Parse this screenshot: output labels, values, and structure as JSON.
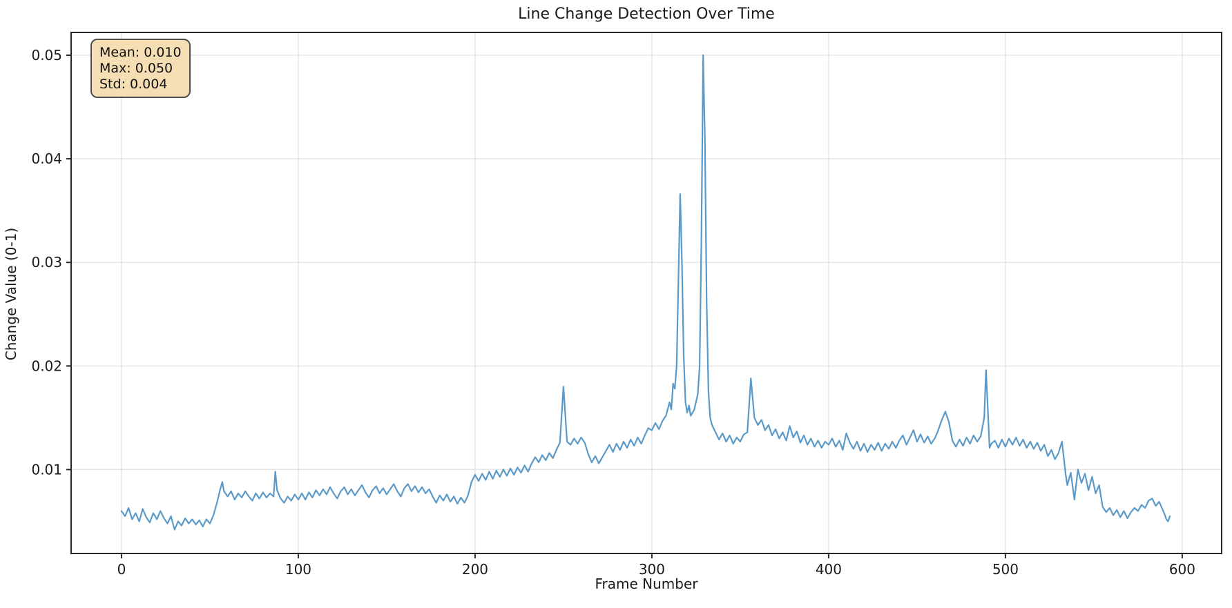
{
  "title": "Line Change Detection Over Time",
  "stats_box": {
    "mean_label": "Mean: 0.010",
    "max_label": "Max: 0.050",
    "std_label": "Std: 0.004",
    "background_color": "#f5deb3",
    "border_color": "#4d4d4d"
  },
  "chart_data": {
    "type": "line",
    "title": "Line Change Detection Over Time",
    "xlabel": "Frame Number",
    "ylabel": "Change Value (0-1)",
    "xlim": [
      -28.5,
      622.3
    ],
    "ylim": [
      0.0019,
      0.0522
    ],
    "x_ticks": [
      0,
      100,
      200,
      300,
      400,
      500,
      600
    ],
    "x_tick_labels": [
      "0",
      "100",
      "200",
      "300",
      "400",
      "500",
      "600"
    ],
    "y_ticks": [
      0.01,
      0.02,
      0.03,
      0.04,
      0.05
    ],
    "y_tick_labels": [
      "0.01",
      "0.02",
      "0.03",
      "0.04",
      "0.05"
    ],
    "grid": true,
    "grid_color": "#e5e5e5",
    "spine_color": "#262626",
    "line_color": "#5b9ac8",
    "stats": {
      "mean": 0.01,
      "max": 0.05,
      "std": 0.004
    },
    "points": [
      [
        0,
        0.006
      ],
      [
        2,
        0.0055
      ],
      [
        4,
        0.0063
      ],
      [
        6,
        0.0052
      ],
      [
        8,
        0.0058
      ],
      [
        10,
        0.005
      ],
      [
        12,
        0.0062
      ],
      [
        14,
        0.0054
      ],
      [
        16,
        0.0049
      ],
      [
        18,
        0.0058
      ],
      [
        20,
        0.0052
      ],
      [
        22,
        0.006
      ],
      [
        24,
        0.0053
      ],
      [
        26,
        0.0048
      ],
      [
        28,
        0.0055
      ],
      [
        30,
        0.0042
      ],
      [
        32,
        0.005
      ],
      [
        34,
        0.0046
      ],
      [
        36,
        0.0053
      ],
      [
        38,
        0.0048
      ],
      [
        40,
        0.0052
      ],
      [
        42,
        0.0047
      ],
      [
        44,
        0.0051
      ],
      [
        46,
        0.0045
      ],
      [
        48,
        0.0052
      ],
      [
        50,
        0.0048
      ],
      [
        52,
        0.0056
      ],
      [
        54,
        0.0068
      ],
      [
        56,
        0.0082
      ],
      [
        57,
        0.0088
      ],
      [
        58,
        0.0079
      ],
      [
        60,
        0.0074
      ],
      [
        62,
        0.0079
      ],
      [
        64,
        0.0071
      ],
      [
        66,
        0.0077
      ],
      [
        68,
        0.0073
      ],
      [
        70,
        0.0079
      ],
      [
        72,
        0.0074
      ],
      [
        74,
        0.007
      ],
      [
        76,
        0.0077
      ],
      [
        78,
        0.0072
      ],
      [
        80,
        0.0078
      ],
      [
        82,
        0.0073
      ],
      [
        84,
        0.0077
      ],
      [
        86,
        0.0074
      ],
      [
        87,
        0.0098
      ],
      [
        88,
        0.008
      ],
      [
        90,
        0.0072
      ],
      [
        92,
        0.0068
      ],
      [
        94,
        0.0074
      ],
      [
        96,
        0.007
      ],
      [
        98,
        0.0076
      ],
      [
        100,
        0.0071
      ],
      [
        102,
        0.0077
      ],
      [
        104,
        0.0071
      ],
      [
        106,
        0.0078
      ],
      [
        108,
        0.0073
      ],
      [
        110,
        0.008
      ],
      [
        112,
        0.0075
      ],
      [
        114,
        0.0081
      ],
      [
        116,
        0.0076
      ],
      [
        118,
        0.0083
      ],
      [
        120,
        0.0077
      ],
      [
        122,
        0.0072
      ],
      [
        124,
        0.0079
      ],
      [
        126,
        0.0083
      ],
      [
        128,
        0.0076
      ],
      [
        130,
        0.0081
      ],
      [
        132,
        0.0075
      ],
      [
        134,
        0.008
      ],
      [
        136,
        0.0085
      ],
      [
        138,
        0.0078
      ],
      [
        140,
        0.0073
      ],
      [
        142,
        0.008
      ],
      [
        144,
        0.0084
      ],
      [
        146,
        0.0077
      ],
      [
        148,
        0.0082
      ],
      [
        150,
        0.0076
      ],
      [
        152,
        0.0081
      ],
      [
        154,
        0.0086
      ],
      [
        156,
        0.0079
      ],
      [
        158,
        0.0074
      ],
      [
        160,
        0.0082
      ],
      [
        162,
        0.0086
      ],
      [
        164,
        0.0079
      ],
      [
        166,
        0.0084
      ],
      [
        168,
        0.0078
      ],
      [
        170,
        0.0083
      ],
      [
        172,
        0.0077
      ],
      [
        174,
        0.0081
      ],
      [
        176,
        0.0074
      ],
      [
        178,
        0.0068
      ],
      [
        180,
        0.0075
      ],
      [
        182,
        0.007
      ],
      [
        184,
        0.0076
      ],
      [
        186,
        0.0069
      ],
      [
        188,
        0.0074
      ],
      [
        190,
        0.0067
      ],
      [
        192,
        0.0073
      ],
      [
        194,
        0.0068
      ],
      [
        196,
        0.0075
      ],
      [
        198,
        0.0088
      ],
      [
        200,
        0.0095
      ],
      [
        202,
        0.0089
      ],
      [
        204,
        0.0096
      ],
      [
        206,
        0.009
      ],
      [
        208,
        0.0098
      ],
      [
        210,
        0.0091
      ],
      [
        212,
        0.0099
      ],
      [
        214,
        0.0093
      ],
      [
        216,
        0.01
      ],
      [
        218,
        0.0094
      ],
      [
        220,
        0.0101
      ],
      [
        222,
        0.0095
      ],
      [
        224,
        0.0102
      ],
      [
        226,
        0.0097
      ],
      [
        228,
        0.0104
      ],
      [
        230,
        0.0098
      ],
      [
        232,
        0.0106
      ],
      [
        234,
        0.0112
      ],
      [
        236,
        0.0107
      ],
      [
        238,
        0.0114
      ],
      [
        240,
        0.0109
      ],
      [
        242,
        0.0116
      ],
      [
        244,
        0.0111
      ],
      [
        246,
        0.0119
      ],
      [
        248,
        0.0126
      ],
      [
        250,
        0.018
      ],
      [
        252,
        0.0127
      ],
      [
        254,
        0.0124
      ],
      [
        256,
        0.013
      ],
      [
        258,
        0.0125
      ],
      [
        260,
        0.0131
      ],
      [
        262,
        0.0126
      ],
      [
        264,
        0.0115
      ],
      [
        266,
        0.0107
      ],
      [
        268,
        0.0113
      ],
      [
        270,
        0.0106
      ],
      [
        272,
        0.0112
      ],
      [
        274,
        0.0118
      ],
      [
        276,
        0.0124
      ],
      [
        278,
        0.0117
      ],
      [
        280,
        0.0125
      ],
      [
        282,
        0.0119
      ],
      [
        284,
        0.0127
      ],
      [
        286,
        0.0121
      ],
      [
        288,
        0.0129
      ],
      [
        290,
        0.0123
      ],
      [
        292,
        0.0131
      ],
      [
        294,
        0.0125
      ],
      [
        296,
        0.0133
      ],
      [
        298,
        0.014
      ],
      [
        300,
        0.0138
      ],
      [
        302,
        0.0145
      ],
      [
        304,
        0.0139
      ],
      [
        306,
        0.0147
      ],
      [
        308,
        0.0152
      ],
      [
        310,
        0.0165
      ],
      [
        311,
        0.0158
      ],
      [
        312,
        0.0183
      ],
      [
        313,
        0.0178
      ],
      [
        314,
        0.02
      ],
      [
        315,
        0.028
      ],
      [
        316,
        0.0366
      ],
      [
        317,
        0.03
      ],
      [
        318,
        0.021
      ],
      [
        319,
        0.0165
      ],
      [
        320,
        0.0155
      ],
      [
        321,
        0.0162
      ],
      [
        322,
        0.0152
      ],
      [
        324,
        0.0158
      ],
      [
        326,
        0.0173
      ],
      [
        327,
        0.02
      ],
      [
        328,
        0.032
      ],
      [
        329,
        0.05
      ],
      [
        330,
        0.042
      ],
      [
        331,
        0.026
      ],
      [
        332,
        0.0175
      ],
      [
        333,
        0.015
      ],
      [
        334,
        0.0143
      ],
      [
        336,
        0.0136
      ],
      [
        338,
        0.0129
      ],
      [
        340,
        0.0135
      ],
      [
        342,
        0.0127
      ],
      [
        344,
        0.0133
      ],
      [
        346,
        0.0125
      ],
      [
        348,
        0.0131
      ],
      [
        350,
        0.0127
      ],
      [
        352,
        0.0134
      ],
      [
        354,
        0.0136
      ],
      [
        356,
        0.0188
      ],
      [
        358,
        0.015
      ],
      [
        360,
        0.0143
      ],
      [
        362,
        0.0148
      ],
      [
        364,
        0.0138
      ],
      [
        366,
        0.0143
      ],
      [
        368,
        0.0133
      ],
      [
        370,
        0.0139
      ],
      [
        372,
        0.013
      ],
      [
        374,
        0.0136
      ],
      [
        376,
        0.0128
      ],
      [
        378,
        0.0142
      ],
      [
        380,
        0.0131
      ],
      [
        382,
        0.0137
      ],
      [
        384,
        0.0126
      ],
      [
        386,
        0.0133
      ],
      [
        388,
        0.0124
      ],
      [
        390,
        0.013
      ],
      [
        392,
        0.0122
      ],
      [
        394,
        0.0128
      ],
      [
        396,
        0.0121
      ],
      [
        398,
        0.0127
      ],
      [
        400,
        0.0124
      ],
      [
        402,
        0.013
      ],
      [
        404,
        0.0122
      ],
      [
        406,
        0.0128
      ],
      [
        408,
        0.0119
      ],
      [
        410,
        0.0135
      ],
      [
        412,
        0.0126
      ],
      [
        414,
        0.012
      ],
      [
        416,
        0.0127
      ],
      [
        418,
        0.0118
      ],
      [
        420,
        0.0125
      ],
      [
        422,
        0.0117
      ],
      [
        424,
        0.0124
      ],
      [
        426,
        0.0119
      ],
      [
        428,
        0.0126
      ],
      [
        430,
        0.0118
      ],
      [
        432,
        0.0125
      ],
      [
        434,
        0.012
      ],
      [
        436,
        0.0127
      ],
      [
        438,
        0.0121
      ],
      [
        440,
        0.0128
      ],
      [
        442,
        0.0133
      ],
      [
        444,
        0.0124
      ],
      [
        446,
        0.0131
      ],
      [
        448,
        0.0138
      ],
      [
        450,
        0.0127
      ],
      [
        452,
        0.0134
      ],
      [
        454,
        0.0126
      ],
      [
        456,
        0.0132
      ],
      [
        458,
        0.0125
      ],
      [
        460,
        0.013
      ],
      [
        462,
        0.0138
      ],
      [
        464,
        0.0148
      ],
      [
        466,
        0.0156
      ],
      [
        468,
        0.0146
      ],
      [
        470,
        0.0128
      ],
      [
        472,
        0.0122
      ],
      [
        474,
        0.0129
      ],
      [
        476,
        0.0123
      ],
      [
        478,
        0.0131
      ],
      [
        480,
        0.0125
      ],
      [
        482,
        0.0133
      ],
      [
        484,
        0.0127
      ],
      [
        486,
        0.0132
      ],
      [
        488,
        0.015
      ],
      [
        489,
        0.0196
      ],
      [
        490,
        0.016
      ],
      [
        491,
        0.0121
      ],
      [
        492,
        0.0125
      ],
      [
        494,
        0.0128
      ],
      [
        496,
        0.0121
      ],
      [
        498,
        0.0129
      ],
      [
        500,
        0.0122
      ],
      [
        502,
        0.013
      ],
      [
        504,
        0.0124
      ],
      [
        506,
        0.0131
      ],
      [
        508,
        0.0123
      ],
      [
        510,
        0.0129
      ],
      [
        512,
        0.0121
      ],
      [
        514,
        0.0127
      ],
      [
        516,
        0.012
      ],
      [
        518,
        0.0126
      ],
      [
        520,
        0.0118
      ],
      [
        522,
        0.0124
      ],
      [
        524,
        0.0113
      ],
      [
        526,
        0.0119
      ],
      [
        528,
        0.011
      ],
      [
        530,
        0.0116
      ],
      [
        532,
        0.0127
      ],
      [
        534,
        0.0096
      ],
      [
        535,
        0.0085
      ],
      [
        537,
        0.0097
      ],
      [
        539,
        0.0071
      ],
      [
        541,
        0.01
      ],
      [
        543,
        0.0087
      ],
      [
        545,
        0.0096
      ],
      [
        547,
        0.008
      ],
      [
        549,
        0.0093
      ],
      [
        551,
        0.0077
      ],
      [
        553,
        0.0085
      ],
      [
        555,
        0.0064
      ],
      [
        557,
        0.0059
      ],
      [
        559,
        0.0063
      ],
      [
        561,
        0.0056
      ],
      [
        563,
        0.0061
      ],
      [
        565,
        0.0054
      ],
      [
        567,
        0.006
      ],
      [
        569,
        0.0053
      ],
      [
        571,
        0.0059
      ],
      [
        573,
        0.0063
      ],
      [
        575,
        0.006
      ],
      [
        577,
        0.0066
      ],
      [
        579,
        0.0063
      ],
      [
        581,
        0.007
      ],
      [
        583,
        0.0072
      ],
      [
        585,
        0.0065
      ],
      [
        587,
        0.0069
      ],
      [
        589,
        0.0061
      ],
      [
        590,
        0.0057
      ],
      [
        591,
        0.0052
      ],
      [
        592,
        0.005
      ],
      [
        593,
        0.0055
      ]
    ]
  }
}
